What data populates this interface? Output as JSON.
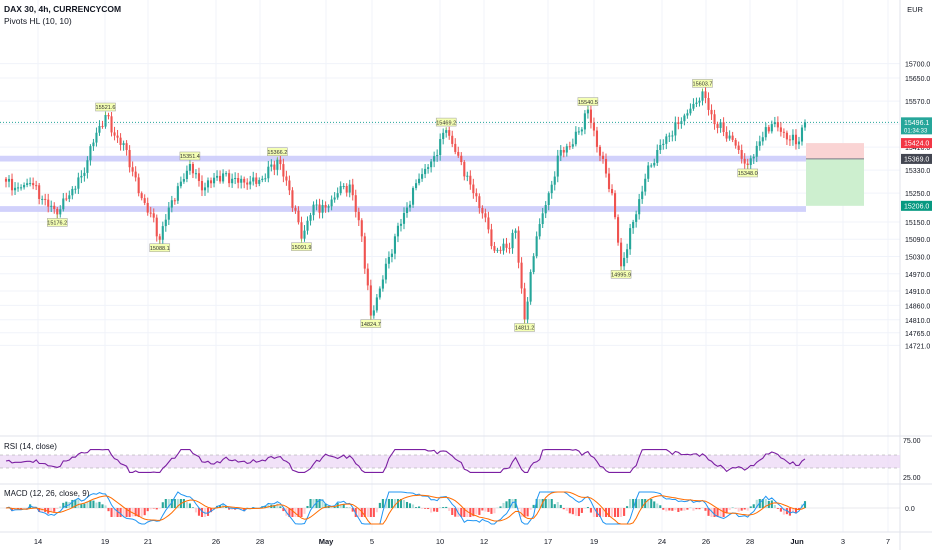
{
  "header": {
    "symbol": "DAX 30, 4h, CURRENCYCOM",
    "indicator": "Pivots HL (10, 10)",
    "currency": "EUR"
  },
  "rsi": {
    "label": "RSI (14, close)",
    "ticks": [
      "75.00",
      "25.00"
    ],
    "color": "#7B1FA2",
    "band_color": "#EBD6F5"
  },
  "macd": {
    "label": "MACD (12, 26, close, 9)",
    "ticks": [
      "0.0"
    ],
    "macd_color": "#2196F3",
    "signal_color": "#FF6D00"
  },
  "colors": {
    "up": "#26A69A",
    "down": "#EF5350",
    "zone": "#C9C9FA",
    "stop": "#FAD4D4",
    "target": "#CDEFCF"
  },
  "time_labels": [
    "14",
    "19",
    "21",
    "26",
    "28",
    "May",
    "5",
    "10",
    "12",
    "17",
    "19",
    "24",
    "26",
    "28",
    "Jun",
    "3",
    "7"
  ],
  "price_axis": {
    "labels": [
      "15700.0",
      "15650.0",
      "15570.0",
      "15490.0",
      "15410.0",
      "15330.0",
      "15250.0",
      "15150.0",
      "15090.0",
      "15030.0",
      "14970.0",
      "14910.0",
      "14860.0",
      "14810.0",
      "14765.0",
      "14721.0"
    ]
  },
  "price_tags": [
    {
      "value": "15496.1",
      "sub": "01:34:33",
      "color": "#26A69A"
    },
    {
      "value": "15424.0",
      "color": "#F23645"
    },
    {
      "value": "15369.0",
      "color": "#434651"
    },
    {
      "value": "15206.0",
      "color": "#089981"
    }
  ],
  "chart_data": {
    "type": "candlestick",
    "title": "DAX 30, 4h, CURRENCYCOM",
    "ylim": [
      14700,
      15720
    ],
    "support_zones": [
      [
        15360,
        15380
      ],
      [
        15185,
        15205
      ]
    ],
    "trade_box": {
      "entry": 15369.0,
      "stop": 15424.0,
      "target": 15206.0
    },
    "pivot_labels": [
      {
        "label": "15176.2",
        "x_idx": 17,
        "price": 15176.2,
        "kind": "low"
      },
      {
        "label": "15521.6",
        "x_idx": 33,
        "price": 15521.6,
        "kind": "high"
      },
      {
        "label": "15088.1",
        "x_idx": 51,
        "price": 15088.1,
        "kind": "low"
      },
      {
        "label": "15351.4",
        "x_idx": 61,
        "price": 15351.4,
        "kind": "high"
      },
      {
        "label": "15366.2",
        "x_idx": 90,
        "price": 15366.2,
        "kind": "high"
      },
      {
        "label": "15091.9",
        "x_idx": 98,
        "price": 15091.9,
        "kind": "low"
      },
      {
        "label": "14824.7",
        "x_idx": 121,
        "price": 14824.7,
        "kind": "low"
      },
      {
        "label": "15469.2",
        "x_idx": 146,
        "price": 15469.2,
        "kind": "high"
      },
      {
        "label": "14811.2",
        "x_idx": 172,
        "price": 14811.2,
        "kind": "low"
      },
      {
        "label": "15540.5",
        "x_idx": 193,
        "price": 15540.5,
        "kind": "high"
      },
      {
        "label": "14995.9",
        "x_idx": 204,
        "price": 14995.9,
        "kind": "low"
      },
      {
        "label": "15603.7",
        "x_idx": 231,
        "price": 15603.7,
        "kind": "high"
      },
      {
        "label": "15348.0",
        "x_idx": 246,
        "price": 15348.0,
        "kind": "low"
      }
    ],
    "anchors": [
      [
        0,
        15290
      ],
      [
        4,
        15270
      ],
      [
        8,
        15285
      ],
      [
        12,
        15230
      ],
      [
        17,
        15176.2
      ],
      [
        20,
        15230
      ],
      [
        25,
        15310
      ],
      [
        30,
        15460
      ],
      [
        33,
        15521.6
      ],
      [
        36,
        15450
      ],
      [
        40,
        15400
      ],
      [
        44,
        15250
      ],
      [
        48,
        15180
      ],
      [
        51,
        15088.1
      ],
      [
        54,
        15200
      ],
      [
        58,
        15290
      ],
      [
        61,
        15351.4
      ],
      [
        65,
        15260
      ],
      [
        70,
        15310
      ],
      [
        75,
        15300
      ],
      [
        80,
        15280
      ],
      [
        85,
        15300
      ],
      [
        90,
        15366.2
      ],
      [
        94,
        15260
      ],
      [
        98,
        15091.9
      ],
      [
        102,
        15210
      ],
      [
        106,
        15200
      ],
      [
        110,
        15250
      ],
      [
        114,
        15280
      ],
      [
        118,
        15100
      ],
      [
        121,
        14824.7
      ],
      [
        125,
        14950
      ],
      [
        129,
        15100
      ],
      [
        133,
        15200
      ],
      [
        137,
        15300
      ],
      [
        141,
        15360
      ],
      [
        146,
        15469.2
      ],
      [
        150,
        15380
      ],
      [
        154,
        15280
      ],
      [
        158,
        15180
      ],
      [
        162,
        15050
      ],
      [
        166,
        15060
      ],
      [
        169,
        15120
      ],
      [
        172,
        14811.2
      ],
      [
        176,
        15100
      ],
      [
        180,
        15250
      ],
      [
        184,
        15400
      ],
      [
        188,
        15420
      ],
      [
        193,
        15540.5
      ],
      [
        197,
        15380
      ],
      [
        201,
        15250
      ],
      [
        204,
        14995.9
      ],
      [
        208,
        15150
      ],
      [
        212,
        15300
      ],
      [
        216,
        15400
      ],
      [
        220,
        15450
      ],
      [
        224,
        15500
      ],
      [
        228,
        15560
      ],
      [
        231,
        15603.7
      ],
      [
        235,
        15490
      ],
      [
        240,
        15450
      ],
      [
        243,
        15400
      ],
      [
        246,
        15348.0
      ],
      [
        250,
        15430
      ],
      [
        254,
        15490
      ],
      [
        258,
        15460
      ],
      [
        262,
        15420
      ],
      [
        265,
        15496.1
      ]
    ],
    "rsi_ylim": [
      0,
      100
    ],
    "rsi_band": [
      25,
      75
    ]
  }
}
